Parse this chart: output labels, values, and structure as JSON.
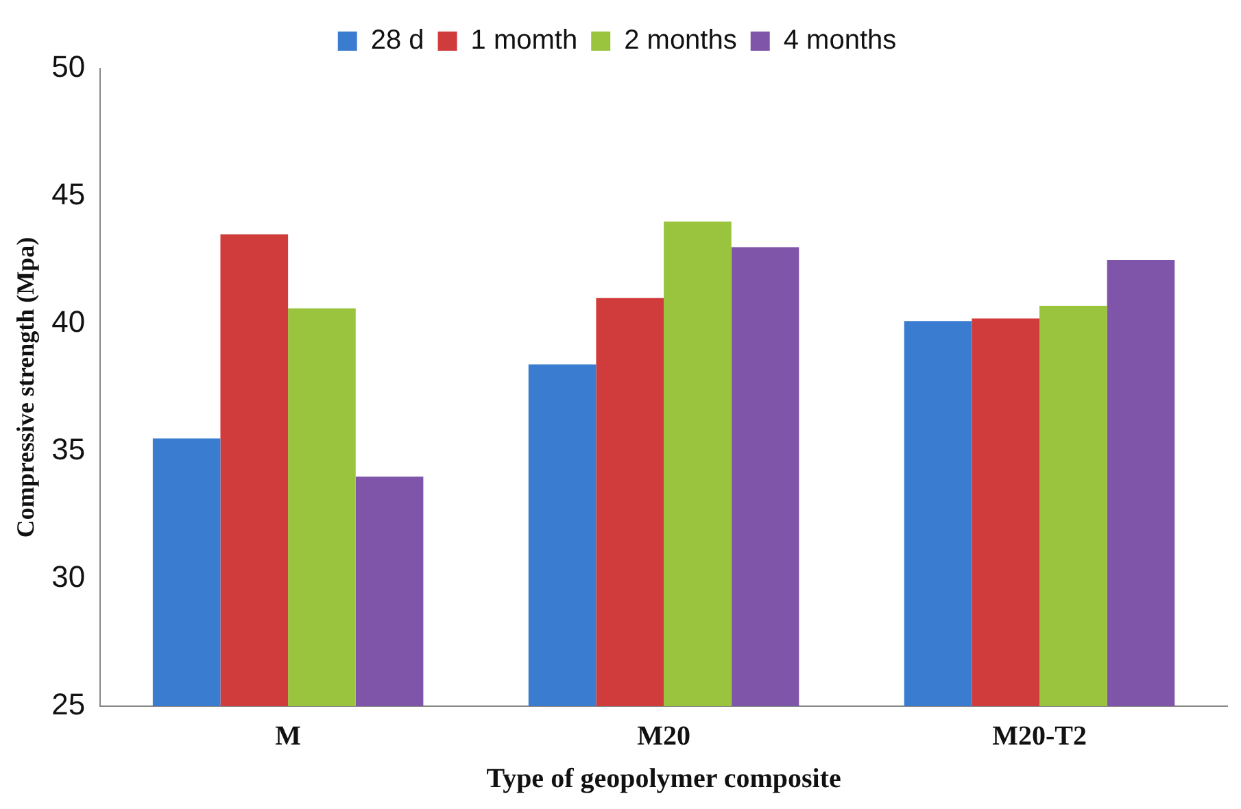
{
  "chart_data": {
    "type": "bar",
    "xlabel": "Type of geopolymer composite",
    "ylabel": "Compressive strength (Mpa)",
    "categories": [
      "M",
      "M20",
      "M20-T2"
    ],
    "series": [
      {
        "name": "28 d",
        "color": "#3a7dd0",
        "values": [
          35.5,
          38.4,
          40.1
        ]
      },
      {
        "name": "1 momth",
        "color": "#d03c3c",
        "values": [
          43.5,
          41.0,
          40.2
        ]
      },
      {
        "name": "2 months",
        "color": "#9bc43e",
        "values": [
          40.6,
          44.0,
          40.7
        ]
      },
      {
        "name": "4 months",
        "color": "#7e55a8",
        "values": [
          34.0,
          43.0,
          42.5
        ]
      }
    ],
    "ylim": [
      25,
      50
    ],
    "yticks": [
      25,
      30,
      35,
      40,
      45,
      50
    ],
    "grid": false,
    "legend": "top"
  }
}
